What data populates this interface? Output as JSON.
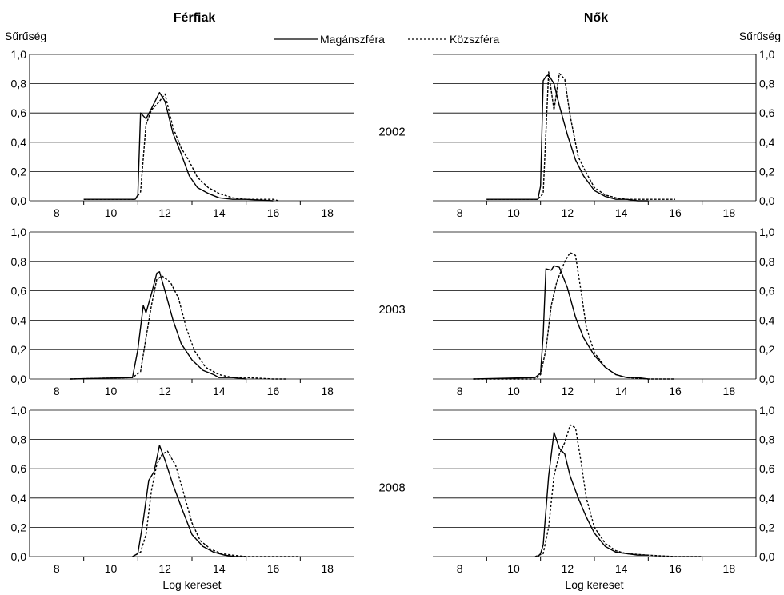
{
  "header": {
    "left_title": "Férfiak",
    "right_title": "Nők",
    "left_ylabel": "Sűrűség",
    "right_ylabel": "Sűrűség"
  },
  "legend": {
    "private_label": "Magánszféra",
    "public_label": "Közszféra"
  },
  "xlabel": "Log kereset",
  "colors": {
    "line": "#000000",
    "grid": "#000000",
    "background": "#ffffff"
  },
  "chart_data": [
    {
      "type": "line",
      "group": "Férfiak",
      "year": "2002",
      "xlim": [
        7,
        19
      ],
      "ylim": [
        0,
        1
      ],
      "xticks": [
        "8",
        "10",
        "12",
        "14",
        "16",
        "18"
      ],
      "yticks": [
        "0,0",
        "0,2",
        "0,4",
        "0,6",
        "0,8",
        "1,0"
      ],
      "series": [
        {
          "name": "Magánszféra",
          "style": "solid",
          "x": [
            9.0,
            10.9,
            11.0,
            11.1,
            11.3,
            11.5,
            11.8,
            12.0,
            12.3,
            12.6,
            12.9,
            13.2,
            13.6,
            14.0,
            14.5,
            15.0,
            16.0
          ],
          "y": [
            0.01,
            0.01,
            0.04,
            0.6,
            0.56,
            0.63,
            0.74,
            0.68,
            0.46,
            0.32,
            0.17,
            0.09,
            0.05,
            0.02,
            0.01,
            0.01,
            0.0
          ]
        },
        {
          "name": "Közszféra",
          "style": "dashed",
          "x": [
            9.0,
            10.9,
            11.1,
            11.3,
            11.5,
            11.8,
            12.0,
            12.3,
            12.6,
            12.9,
            13.2,
            13.6,
            14.0,
            14.5,
            15.0,
            16.0,
            16.2
          ],
          "y": [
            0.01,
            0.01,
            0.06,
            0.52,
            0.62,
            0.68,
            0.73,
            0.5,
            0.36,
            0.27,
            0.16,
            0.09,
            0.05,
            0.02,
            0.01,
            0.01,
            0.0
          ]
        }
      ]
    },
    {
      "type": "line",
      "group": "Férfiak",
      "year": "2003",
      "xlim": [
        7,
        19
      ],
      "ylim": [
        0,
        1
      ],
      "xticks": [
        "8",
        "10",
        "12",
        "14",
        "16",
        "18"
      ],
      "yticks": [
        "0,0",
        "0,2",
        "0,4",
        "0,6",
        "0,8",
        "1,0"
      ],
      "series": [
        {
          "name": "Magánszféra",
          "style": "solid",
          "x": [
            8.5,
            10.8,
            11.0,
            11.2,
            11.3,
            11.5,
            11.7,
            11.8,
            12.0,
            12.3,
            12.6,
            13.0,
            13.4,
            13.8,
            14.0,
            14.5,
            15.0
          ],
          "y": [
            0.0,
            0.01,
            0.2,
            0.5,
            0.45,
            0.58,
            0.72,
            0.73,
            0.6,
            0.4,
            0.24,
            0.13,
            0.06,
            0.03,
            0.01,
            0.01,
            0.0
          ]
        },
        {
          "name": "Közszféra",
          "style": "dashed",
          "x": [
            8.5,
            10.8,
            11.1,
            11.3,
            11.5,
            11.7,
            11.9,
            12.2,
            12.5,
            12.8,
            13.1,
            13.5,
            14.0,
            14.5,
            15.0,
            16.0,
            16.5
          ],
          "y": [
            0.0,
            0.01,
            0.05,
            0.28,
            0.5,
            0.68,
            0.7,
            0.66,
            0.55,
            0.34,
            0.19,
            0.08,
            0.03,
            0.01,
            0.01,
            0.0,
            0.0
          ]
        }
      ]
    },
    {
      "type": "line",
      "group": "Férfiak",
      "year": "2008",
      "xlim": [
        7,
        19
      ],
      "ylim": [
        0,
        1
      ],
      "xticks": [
        "8",
        "10",
        "12",
        "14",
        "16",
        "18"
      ],
      "yticks": [
        "0,0",
        "0,2",
        "0,4",
        "0,6",
        "0,8",
        "1,0"
      ],
      "series": [
        {
          "name": "Magánszféra",
          "style": "solid",
          "x": [
            10.8,
            11.0,
            11.2,
            11.4,
            11.6,
            11.8,
            12.0,
            12.3,
            12.6,
            13.0,
            13.4,
            13.8,
            14.2,
            14.6,
            15.0
          ],
          "y": [
            0.0,
            0.02,
            0.25,
            0.52,
            0.58,
            0.76,
            0.66,
            0.49,
            0.34,
            0.15,
            0.07,
            0.03,
            0.01,
            0.0,
            0.0
          ]
        },
        {
          "name": "Közszféra",
          "style": "dashed",
          "x": [
            10.8,
            11.1,
            11.3,
            11.5,
            11.7,
            11.9,
            12.1,
            12.4,
            12.7,
            13.0,
            13.3,
            13.7,
            14.1,
            14.5,
            15.0,
            16.0,
            17.0
          ],
          "y": [
            0.0,
            0.03,
            0.15,
            0.45,
            0.63,
            0.7,
            0.72,
            0.62,
            0.43,
            0.23,
            0.11,
            0.05,
            0.02,
            0.01,
            0.0,
            0.0,
            0.0
          ]
        }
      ]
    },
    {
      "type": "line",
      "group": "Nők",
      "year": "2002",
      "xlim": [
        7,
        19
      ],
      "ylim": [
        0,
        1
      ],
      "xticks": [
        "8",
        "10",
        "12",
        "14",
        "16",
        "18"
      ],
      "yticks": [
        "0,0",
        "0,2",
        "0,4",
        "0,6",
        "0,8",
        "1,0"
      ],
      "series": [
        {
          "name": "Magánszféra",
          "style": "solid",
          "x": [
            9.0,
            10.9,
            11.0,
            11.1,
            11.2,
            11.3,
            11.5,
            11.7,
            12.0,
            12.3,
            12.6,
            13.0,
            13.4,
            13.8,
            14.2,
            14.6,
            15.0
          ],
          "y": [
            0.01,
            0.01,
            0.1,
            0.82,
            0.85,
            0.86,
            0.8,
            0.65,
            0.45,
            0.28,
            0.17,
            0.07,
            0.03,
            0.01,
            0.01,
            0.0,
            0.0
          ]
        },
        {
          "name": "Közszféra",
          "style": "dashed",
          "x": [
            9.0,
            10.9,
            11.1,
            11.3,
            11.5,
            11.7,
            11.9,
            12.1,
            12.4,
            12.7,
            13.0,
            13.4,
            13.8,
            14.2,
            14.6,
            15.0,
            16.0
          ],
          "y": [
            0.01,
            0.01,
            0.05,
            0.88,
            0.62,
            0.87,
            0.83,
            0.58,
            0.3,
            0.19,
            0.09,
            0.04,
            0.02,
            0.01,
            0.01,
            0.01,
            0.01
          ]
        }
      ]
    },
    {
      "type": "line",
      "group": "Nők",
      "year": "2003",
      "xlim": [
        7,
        19
      ],
      "ylim": [
        0,
        1
      ],
      "xticks": [
        "8",
        "10",
        "12",
        "14",
        "16",
        "18"
      ],
      "yticks": [
        "0,0",
        "0,2",
        "0,4",
        "0,6",
        "0,8",
        "1,0"
      ],
      "series": [
        {
          "name": "Magánszféra",
          "style": "solid",
          "x": [
            8.5,
            10.8,
            11.0,
            11.1,
            11.2,
            11.4,
            11.5,
            11.7,
            12.0,
            12.3,
            12.6,
            13.0,
            13.4,
            13.8,
            14.2,
            14.6,
            15.0
          ],
          "y": [
            0.0,
            0.01,
            0.04,
            0.3,
            0.75,
            0.74,
            0.77,
            0.76,
            0.62,
            0.42,
            0.28,
            0.16,
            0.08,
            0.03,
            0.01,
            0.01,
            0.0
          ]
        },
        {
          "name": "Közszféra",
          "style": "dashed",
          "x": [
            8.5,
            10.8,
            11.0,
            11.2,
            11.4,
            11.6,
            11.9,
            12.1,
            12.3,
            12.5,
            12.7,
            13.0,
            13.4,
            13.8,
            14.2,
            15.0,
            16.0
          ],
          "y": [
            0.0,
            0.0,
            0.03,
            0.2,
            0.5,
            0.66,
            0.8,
            0.86,
            0.84,
            0.6,
            0.35,
            0.18,
            0.08,
            0.03,
            0.01,
            0.0,
            0.0
          ]
        }
      ]
    },
    {
      "type": "line",
      "group": "Nők",
      "year": "2008",
      "xlim": [
        7,
        19
      ],
      "ylim": [
        0,
        1
      ],
      "xticks": [
        "8",
        "10",
        "12",
        "14",
        "16",
        "18"
      ],
      "yticks": [
        "0,0",
        "0,2",
        "0,4",
        "0,6",
        "0,8",
        "1,0"
      ],
      "series": [
        {
          "name": "Magánszféra",
          "style": "solid",
          "x": [
            10.9,
            11.0,
            11.1,
            11.3,
            11.5,
            11.7,
            11.9,
            12.1,
            12.4,
            12.7,
            13.0,
            13.4,
            13.8,
            14.2,
            14.6,
            15.0
          ],
          "y": [
            0.0,
            0.02,
            0.08,
            0.55,
            0.85,
            0.74,
            0.7,
            0.55,
            0.4,
            0.27,
            0.16,
            0.07,
            0.03,
            0.02,
            0.01,
            0.01
          ]
        },
        {
          "name": "Közszféra",
          "style": "dashed",
          "x": [
            10.8,
            11.1,
            11.3,
            11.5,
            11.7,
            11.9,
            12.1,
            12.3,
            12.5,
            12.7,
            13.0,
            13.4,
            13.8,
            14.2,
            15.0,
            16.0,
            17.0
          ],
          "y": [
            0.0,
            0.02,
            0.2,
            0.55,
            0.7,
            0.78,
            0.9,
            0.88,
            0.65,
            0.4,
            0.2,
            0.09,
            0.04,
            0.02,
            0.01,
            0.0,
            0.0
          ]
        }
      ]
    }
  ]
}
